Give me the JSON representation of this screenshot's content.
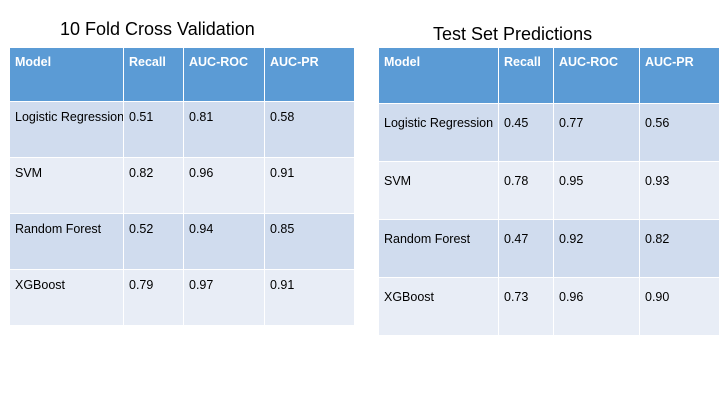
{
  "left": {
    "title": "10 Fold Cross Validation",
    "headers": [
      "Model",
      "Recall",
      "AUC-ROC",
      "AUC-PR"
    ],
    "rows": [
      [
        "Logistic Regression",
        "0.51",
        "0.81",
        "0.58"
      ],
      [
        "SVM",
        "0.82",
        "0.96",
        "0.91"
      ],
      [
        "Random Forest",
        "0.52",
        "0.94",
        "0.85"
      ],
      [
        "XGBoost",
        "0.79",
        "0.97",
        "0.91"
      ]
    ]
  },
  "right": {
    "title": "Test Set Predictions",
    "headers": [
      "Model",
      "Recall",
      "AUC-ROC",
      "AUC-PR"
    ],
    "rows": [
      [
        "Logistic Regression",
        "0.45",
        "0.77",
        "0.56"
      ],
      [
        "SVM",
        "0.78",
        "0.95",
        "0.93"
      ],
      [
        "Random Forest",
        "0.47",
        "0.92",
        "0.82"
      ],
      [
        "XGBoost",
        "0.73",
        "0.96",
        "0.90"
      ]
    ]
  },
  "colors": {
    "header_fill": "#5b9bd5",
    "row_fill_dark": "#d0dcee",
    "row_fill_light": "#e8edf6"
  }
}
